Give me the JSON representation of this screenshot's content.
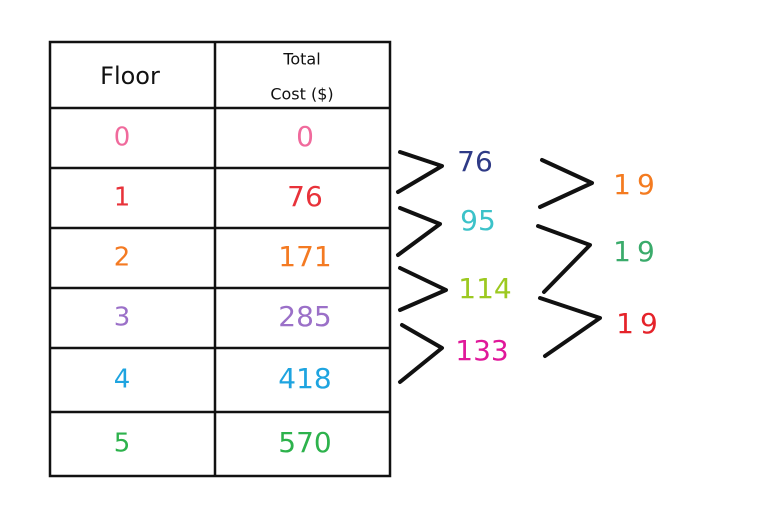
{
  "table": {
    "header": {
      "floor": "Floor",
      "cost_line_1": "Total",
      "cost_line_2": "Cost ($)"
    },
    "rows": [
      {
        "floor": 0,
        "cost": 0,
        "color": "#f06a9c"
      },
      {
        "floor": 1,
        "cost": 76,
        "color": "#e8323a"
      },
      {
        "floor": 2,
        "cost": 171,
        "color": "#f47a22"
      },
      {
        "floor": 3,
        "cost": 285,
        "color": "#9b70c8"
      },
      {
        "floor": 4,
        "cost": 418,
        "color": "#1ea4e0"
      },
      {
        "floor": 5,
        "cost": 570,
        "color": "#2db24c"
      }
    ]
  },
  "first_differences": [
    {
      "value": 76,
      "color": "#2e3a86"
    },
    {
      "value": 95,
      "color": "#3cc2c9"
    },
    {
      "value": 114,
      "color": "#9cc920"
    },
    {
      "value": 133,
      "color": "#e0189a"
    }
  ],
  "second_differences": [
    {
      "value": 19,
      "color": "#f47b20"
    },
    {
      "value": 19,
      "color": "#3aab6b"
    },
    {
      "value": 19,
      "color": "#e5232a"
    }
  ]
}
